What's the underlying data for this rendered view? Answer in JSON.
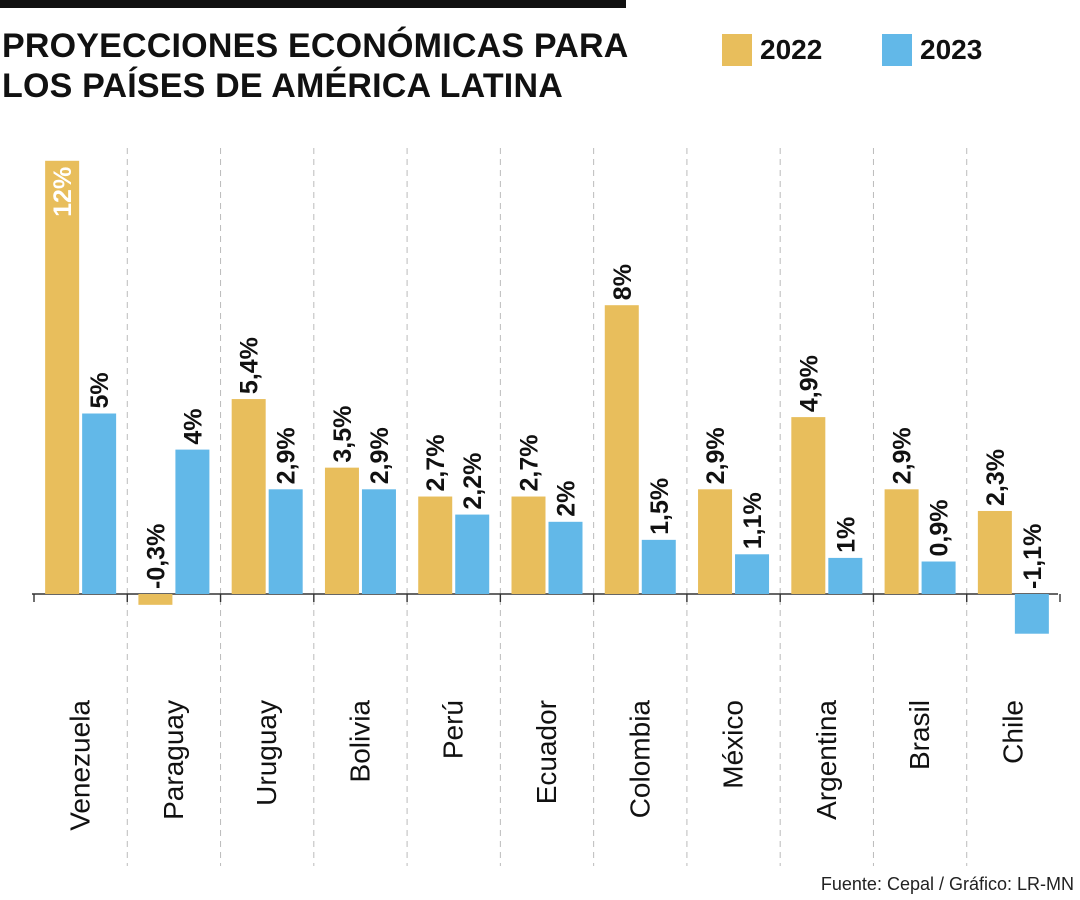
{
  "title_line1": "PROYECCIONES ECONÓMICAS PARA",
  "title_line2": "LOS PAÍSES DE AMÉRICA LATINA",
  "source": "Fuente: Cepal  / Gráfico: LR-MN",
  "colors": {
    "s2022": "#E8BE5C",
    "s2023": "#62B8E8",
    "text": "#111111",
    "grid": "#bbbbbb",
    "axis": "#333333"
  },
  "chart_data": {
    "type": "bar",
    "title": "PROYECCIONES ECONÓMICAS PARA LOS PAÍSES DE AMÉRICA LATINA",
    "xlabel": "",
    "ylabel": "",
    "ylim": [
      -2,
      12.5
    ],
    "grid": true,
    "legend": "top-right",
    "categories": [
      "Venezuela",
      "Paraguay",
      "Uruguay",
      "Bolivia",
      "Perú",
      "Ecuador",
      "Colombia",
      "México",
      "Argentina",
      "Brasil",
      "Chile"
    ],
    "series": [
      {
        "name": "2022",
        "values": [
          12,
          -0.3,
          5.4,
          3.5,
          2.7,
          2.7,
          8,
          2.9,
          4.9,
          2.9,
          2.3
        ],
        "labels": [
          "12%",
          "-0,3%",
          "5,4%",
          "3,5%",
          "2,7%",
          "2,7%",
          "8%",
          "2,9%",
          "4,9%",
          "2,9%",
          "2,3%"
        ]
      },
      {
        "name": "2023",
        "values": [
          5,
          4,
          2.9,
          2.9,
          2.2,
          2,
          1.5,
          1.1,
          1,
          0.9,
          -1.1
        ],
        "labels": [
          "5%",
          "4%",
          "2,9%",
          "2,9%",
          "2,2%",
          "2%",
          "1,5%",
          "1,1%",
          "1%",
          "0,9%",
          "-1,1%"
        ]
      }
    ]
  }
}
